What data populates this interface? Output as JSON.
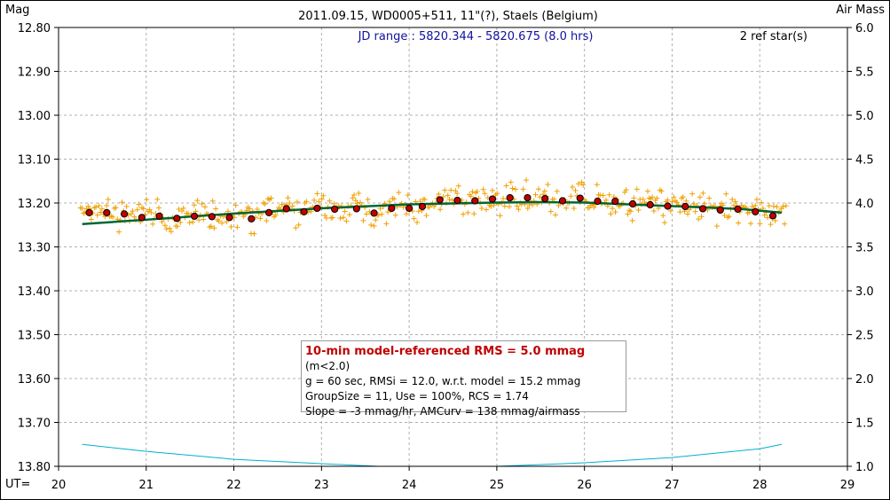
{
  "chart_data": {
    "type": "scatter",
    "title": "2011.09.15, WD0005+511, 11\"(?), Staels (Belgium)",
    "ylabel_left": "Mag",
    "ylabel_right": "Air Mass",
    "xlabel": "UT=",
    "jd_range": "JD range : 5820.344 - 5820.675 (8.0 hrs)",
    "ref_stars": "2 ref star(s)",
    "xlim": [
      20,
      29
    ],
    "ylim": [
      12.8,
      13.8
    ],
    "y_reversed": true,
    "y2lim": [
      1.0,
      6.0
    ],
    "x_ticks": [
      "20",
      "21",
      "22",
      "23",
      "24",
      "25",
      "26",
      "27",
      "28",
      "29"
    ],
    "y_ticks": [
      "12.80",
      "12.90",
      "13.00",
      "13.10",
      "13.20",
      "13.30",
      "13.40",
      "13.50",
      "13.60",
      "13.70",
      "13.80"
    ],
    "y2_ticks": [
      "6.0",
      "5.5",
      "5.0",
      "4.5",
      "4.0",
      "3.5",
      "3.0",
      "2.5",
      "2.0",
      "1.5",
      "1.0"
    ],
    "grid": true,
    "colors": {
      "raw_points": "#f0a000",
      "binned_points": "#c00000",
      "model_line": "#006633",
      "airmass_line": "#00b0d0",
      "title_accent": "#1010a0"
    },
    "series": [
      {
        "name": "binned",
        "x": [
          20.35,
          20.55,
          20.75,
          20.95,
          21.15,
          21.35,
          21.55,
          21.75,
          21.95,
          22.2,
          22.4,
          22.6,
          22.8,
          22.95,
          23.15,
          23.4,
          23.6,
          23.8,
          24.0,
          24.15,
          24.35,
          24.55,
          24.75,
          24.95,
          25.15,
          25.35,
          25.55,
          25.75,
          25.95,
          26.15,
          26.35,
          26.55,
          26.75,
          26.95,
          27.15,
          27.35,
          27.55,
          27.75,
          27.95,
          28.15
        ],
        "y": [
          13.222,
          13.222,
          13.225,
          13.233,
          13.23,
          13.235,
          13.23,
          13.231,
          13.233,
          13.236,
          13.222,
          13.213,
          13.22,
          13.212,
          13.214,
          13.213,
          13.223,
          13.212,
          13.212,
          13.208,
          13.193,
          13.194,
          13.195,
          13.191,
          13.188,
          13.188,
          13.19,
          13.195,
          13.189,
          13.196,
          13.196,
          13.202,
          13.204,
          13.207,
          13.208,
          13.213,
          13.216,
          13.214,
          13.22,
          13.229
        ]
      },
      {
        "name": "model",
        "x": [
          20.27,
          21.0,
          22.0,
          23.0,
          24.0,
          25.0,
          25.5,
          26.0,
          27.0,
          27.8,
          28.25
        ],
        "y": [
          13.248,
          13.238,
          13.224,
          13.212,
          13.203,
          13.199,
          13.198,
          13.199,
          13.207,
          13.214,
          13.222
        ]
      },
      {
        "name": "airmass",
        "x": [
          20.27,
          21.0,
          22.0,
          23.0,
          23.65,
          24.0,
          24.85,
          25.0,
          26.0,
          27.0,
          28.0,
          28.25
        ],
        "y2": [
          1.25,
          1.17,
          1.08,
          1.03,
          1.0,
          1.0,
          1.0,
          1.0,
          1.04,
          1.1,
          1.2,
          1.25
        ]
      }
    ],
    "raw_points_x_range": [
      20.25,
      28.3
    ],
    "raw_points_spread_mag": 0.025
  },
  "stats": {
    "line1_bold": "10-min model-referenced RMS = 5.0 mmag",
    "line1_rest": " (m<2.0)",
    "line2": "g = 60 sec, RMSi = 12.0, w.r.t. model = 15.2 mmag",
    "line3": "GroupSize = 11, Use = 100%, RCS = 1.74",
    "line4": "Slope = -3 mmag/hr, AMCurv = 138 mmag/airmass"
  }
}
